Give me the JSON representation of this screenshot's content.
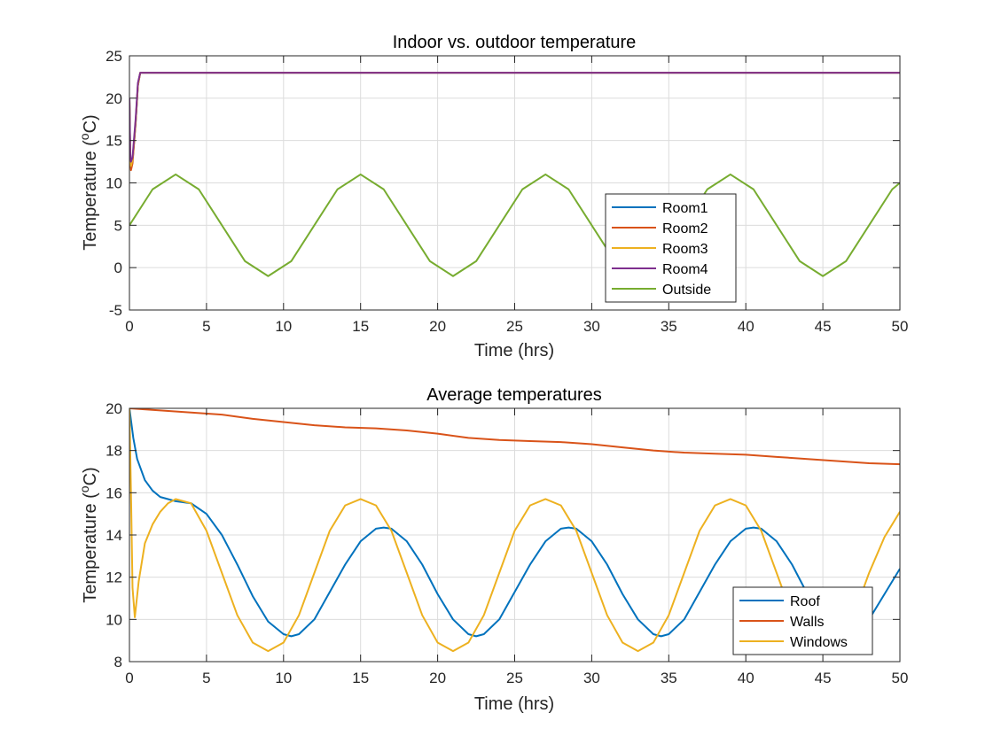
{
  "chart_data": [
    {
      "type": "line",
      "title": "Indoor vs. outdoor temperature",
      "xlabel": "Time (hrs)",
      "ylabel": "Temperature (°C)",
      "xlim": [
        0,
        50
      ],
      "ylim": [
        -5,
        25
      ],
      "xticks": [
        0,
        5,
        10,
        15,
        20,
        25,
        30,
        35,
        40,
        45,
        50
      ],
      "yticks": [
        -5,
        0,
        5,
        10,
        15,
        20,
        25
      ],
      "grid": true,
      "legend_position": "center-right",
      "series": [
        {
          "name": "Room1",
          "color": "#0072BD",
          "x": [
            0,
            0.05,
            0.1,
            0.2,
            0.4,
            0.55,
            0.7,
            50
          ],
          "y": [
            20,
            13,
            11.8,
            12.5,
            17,
            21.5,
            23,
            23
          ]
        },
        {
          "name": "Room2",
          "color": "#D95319",
          "x": [
            0,
            0.05,
            0.1,
            0.2,
            0.4,
            0.55,
            0.7,
            50
          ],
          "y": [
            20,
            12.8,
            11.5,
            12.3,
            17,
            21.5,
            23,
            23
          ]
        },
        {
          "name": "Room3",
          "color": "#EDB120",
          "x": [
            0,
            0.05,
            0.1,
            0.2,
            0.4,
            0.55,
            0.7,
            50
          ],
          "y": [
            20,
            13.2,
            12,
            12.7,
            17.2,
            21.6,
            23,
            23
          ]
        },
        {
          "name": "Room4",
          "color": "#7E2F8E",
          "x": [
            0,
            0.05,
            0.1,
            0.2,
            0.4,
            0.55,
            0.7,
            50
          ],
          "y": [
            20,
            13.5,
            12.5,
            13,
            17.5,
            21.8,
            23,
            23
          ]
        },
        {
          "name": "Outside",
          "color": "#77AC30",
          "x": [
            0,
            1.5,
            3,
            4.5,
            6,
            7.5,
            9,
            10.5,
            12,
            13.5,
            15,
            16.5,
            18,
            19.5,
            21,
            22.5,
            24,
            25.5,
            27,
            28.5,
            30,
            31.5,
            33,
            34.5,
            36,
            37.5,
            39,
            40.5,
            42,
            43.5,
            45,
            46.5,
            48,
            49.5,
            50
          ],
          "y": [
            5,
            9.24,
            11,
            9.24,
            5,
            0.76,
            -1,
            0.76,
            5,
            9.24,
            11,
            9.24,
            5,
            0.76,
            -1,
            0.76,
            5,
            9.24,
            11,
            9.24,
            5,
            0.76,
            -1,
            0.76,
            5,
            9.24,
            11,
            9.24,
            5,
            0.76,
            -1,
            0.76,
            5,
            9.24,
            10
          ]
        }
      ]
    },
    {
      "type": "line",
      "title": "Average temperatures",
      "xlabel": "Time (hrs)",
      "ylabel": "Temperature (°C)",
      "xlim": [
        0,
        50
      ],
      "ylim": [
        8,
        20
      ],
      "xticks": [
        0,
        5,
        10,
        15,
        20,
        25,
        30,
        35,
        40,
        45,
        50
      ],
      "yticks": [
        8,
        10,
        12,
        14,
        16,
        18,
        20
      ],
      "grid": true,
      "legend_position": "bottom-right",
      "series": [
        {
          "name": "Roof",
          "color": "#0072BD",
          "x": [
            0,
            0.25,
            0.5,
            1,
            1.5,
            2,
            3,
            4,
            5,
            6,
            7,
            8,
            9,
            10,
            10.5,
            11,
            12,
            13,
            14,
            15,
            16,
            16.5,
            17,
            18,
            19,
            20,
            21,
            22,
            22.5,
            23,
            24,
            25,
            26,
            27,
            28,
            28.5,
            29,
            30,
            31,
            32,
            33,
            34,
            34.5,
            35,
            36,
            37,
            38,
            39,
            40,
            40.5,
            41,
            42,
            43,
            44,
            45,
            46,
            46.5,
            47,
            48,
            49,
            50
          ],
          "y": [
            20,
            18.6,
            17.6,
            16.6,
            16.1,
            15.8,
            15.6,
            15.5,
            15,
            14,
            12.6,
            11.1,
            9.9,
            9.3,
            9.2,
            9.3,
            10,
            11.3,
            12.6,
            13.7,
            14.3,
            14.35,
            14.3,
            13.7,
            12.6,
            11.2,
            10,
            9.3,
            9.2,
            9.3,
            10,
            11.3,
            12.6,
            13.7,
            14.3,
            14.35,
            14.3,
            13.7,
            12.6,
            11.2,
            10,
            9.3,
            9.2,
            9.3,
            10,
            11.3,
            12.6,
            13.7,
            14.3,
            14.35,
            14.3,
            13.7,
            12.6,
            11.2,
            10,
            9.3,
            9.2,
            9.3,
            10,
            11.2,
            12.4
          ]
        },
        {
          "name": "Walls",
          "color": "#D95319",
          "x": [
            0,
            2,
            4,
            6,
            8,
            10,
            12,
            14,
            16,
            18,
            20,
            22,
            24,
            26,
            28,
            30,
            32,
            34,
            36,
            38,
            40,
            42,
            44,
            46,
            48,
            50
          ],
          "y": [
            20,
            19.9,
            19.8,
            19.7,
            19.5,
            19.35,
            19.2,
            19.1,
            19.05,
            18.95,
            18.8,
            18.6,
            18.5,
            18.45,
            18.4,
            18.3,
            18.15,
            18.0,
            17.9,
            17.85,
            17.8,
            17.7,
            17.6,
            17.5,
            17.4,
            17.35
          ]
        },
        {
          "name": "Windows",
          "color": "#EDB120",
          "x": [
            0,
            0.1,
            0.2,
            0.35,
            0.6,
            1,
            1.5,
            2,
            2.5,
            3,
            4,
            5,
            6,
            7,
            8,
            9,
            10,
            11,
            12,
            13,
            14,
            15,
            16,
            17,
            18,
            19,
            20,
            21,
            22,
            23,
            24,
            25,
            26,
            27,
            28,
            29,
            30,
            31,
            32,
            33,
            34,
            35,
            36,
            37,
            38,
            39,
            40,
            41,
            42,
            43,
            44,
            45,
            46,
            47,
            48,
            49,
            50
          ],
          "y": [
            20,
            16,
            11.5,
            10.1,
            11.8,
            13.6,
            14.5,
            15.1,
            15.5,
            15.7,
            15.5,
            14.2,
            12.2,
            10.2,
            8.9,
            8.5,
            8.9,
            10.2,
            12.2,
            14.2,
            15.4,
            15.7,
            15.4,
            14.2,
            12.2,
            10.2,
            8.9,
            8.5,
            8.9,
            10.2,
            12.2,
            14.2,
            15.4,
            15.7,
            15.4,
            14.2,
            12.2,
            10.2,
            8.9,
            8.5,
            8.9,
            10.2,
            12.2,
            14.2,
            15.4,
            15.7,
            15.4,
            14.2,
            12.2,
            10.2,
            8.9,
            8.5,
            8.9,
            10.2,
            12.2,
            13.9,
            15.1
          ]
        }
      ]
    }
  ]
}
